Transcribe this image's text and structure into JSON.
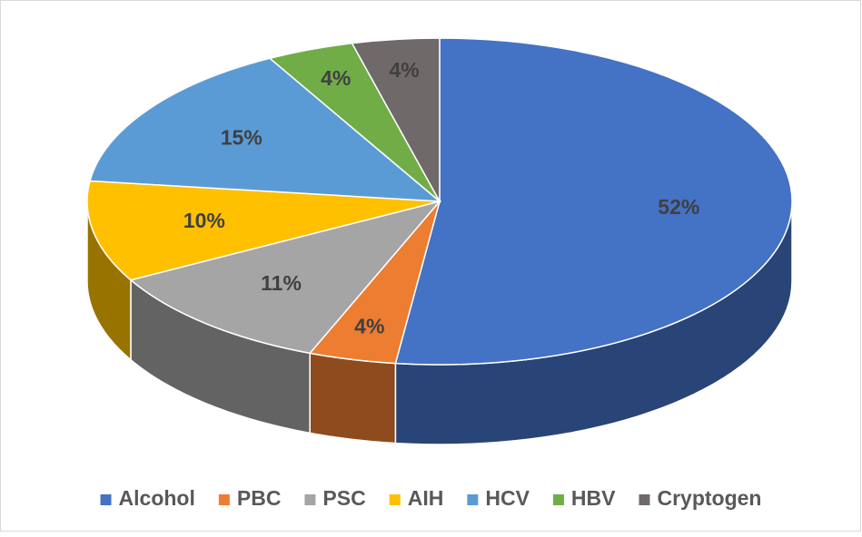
{
  "chart_data": {
    "type": "pie3d",
    "categories": [
      "Alcohol",
      "PBC",
      "PSC",
      "AIH",
      "HCV",
      "HBV",
      "Cryptogen"
    ],
    "values": [
      52,
      4,
      11,
      10,
      15,
      4,
      4
    ],
    "value_labels": [
      "52%",
      "4%",
      "11%",
      "10%",
      "15%",
      "4%",
      "4%"
    ],
    "colors": [
      "#4472c4",
      "#ed7d31",
      "#a5a5a5",
      "#ffc000",
      "#5b9bd5",
      "#70ad47",
      "#6f6a69"
    ],
    "legend": "bottom"
  }
}
